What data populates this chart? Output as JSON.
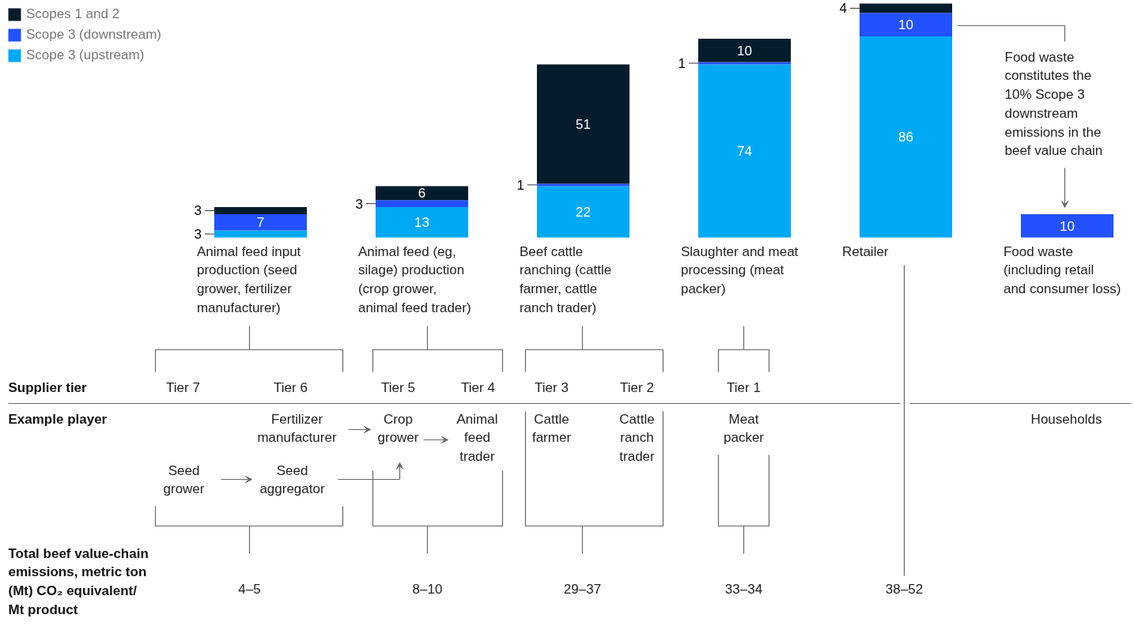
{
  "chart_data": {
    "type": "bar",
    "stacked": true,
    "data_labels": true,
    "legend": "top left",
    "categories": [
      "Animal feed input production (seed grower, fertilizer manufacturer)",
      "Animal feed (eg, silage) production (crop grower, animal feed trader)",
      "Beef cattle ranching (cattle farmer, cattle ranch trader)",
      "Slaughter and meat processing (meat packer)",
      "Retailer",
      "Food waste (including retail and consumer loss)"
    ],
    "series": [
      {
        "name": "Scope 3 (upstream)",
        "color": "#00a9f4",
        "values": [
          3,
          13,
          22,
          74,
          86,
          null
        ]
      },
      {
        "name": "Scope 3 (downstream)",
        "color": "#2251ff",
        "values": [
          7,
          3,
          1,
          1,
          10,
          10
        ]
      },
      {
        "name": "Scopes 1 and 2",
        "color": "#051c2c",
        "values": [
          3,
          6,
          51,
          10,
          4,
          null
        ]
      }
    ],
    "annotations": [
      "Food waste constitutes the 10% Scope 3 downstream emissions in the beef value chain",
      "Supplier tier",
      "Tier 7",
      "Tier 6",
      "Tier 5",
      "Tier 4",
      "Tier 3",
      "Tier 2",
      "Tier 1",
      "Example player",
      "Fertilizer manufacturer",
      "Crop grower",
      "Animal feed trader",
      "Cattle farmer",
      "Cattle ranch trader",
      "Meat packer",
      "Seed grower",
      "Seed aggregator",
      "Households",
      "Total beef value-chain emissions, metric ton (Mt) CO₂ equivalent/ Mt product",
      "4–5",
      "8–10",
      "29–37",
      "33–34",
      "38–52"
    ]
  }
}
